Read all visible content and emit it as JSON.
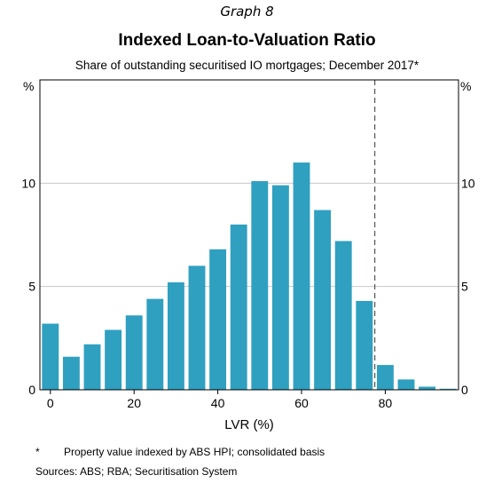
{
  "header": {
    "graph_label": "Graph 8",
    "title": "Indexed Loan-to-Valuation Ratio",
    "subtitle": "Share of outstanding securitised IO mortgages; December 2017*"
  },
  "footnotes": {
    "note_mark": "*",
    "note_text": "Property value indexed by ABS HPI; consolidated basis",
    "sources": "Sources:   ABS; RBA; Securitisation System"
  },
  "colors": {
    "bar": "#2fa0c0",
    "grid": "#c8c8c8",
    "axis": "#000000",
    "reference_line": "#555555"
  },
  "chart_data": {
    "type": "bar",
    "x": [
      0,
      5,
      10,
      15,
      20,
      25,
      30,
      35,
      40,
      45,
      50,
      55,
      60,
      65,
      70,
      75,
      80,
      85,
      90,
      95
    ],
    "values": [
      3.2,
      1.6,
      2.2,
      2.9,
      3.6,
      4.4,
      5.2,
      6.0,
      6.8,
      8.0,
      10.1,
      9.9,
      11.0,
      8.7,
      7.2,
      4.3,
      1.2,
      0.5,
      0.15,
      0.05
    ],
    "xlabel": "LVR (%)",
    "ylabel_left": "%",
    "ylabel_right": "%",
    "xlim": [
      -2.5,
      97.5
    ],
    "ylim": [
      0,
      15
    ],
    "xticks": [
      0,
      20,
      40,
      60,
      80
    ],
    "yticks": [
      0,
      5,
      10
    ],
    "reference_line_x": 77.5,
    "grid": true
  }
}
